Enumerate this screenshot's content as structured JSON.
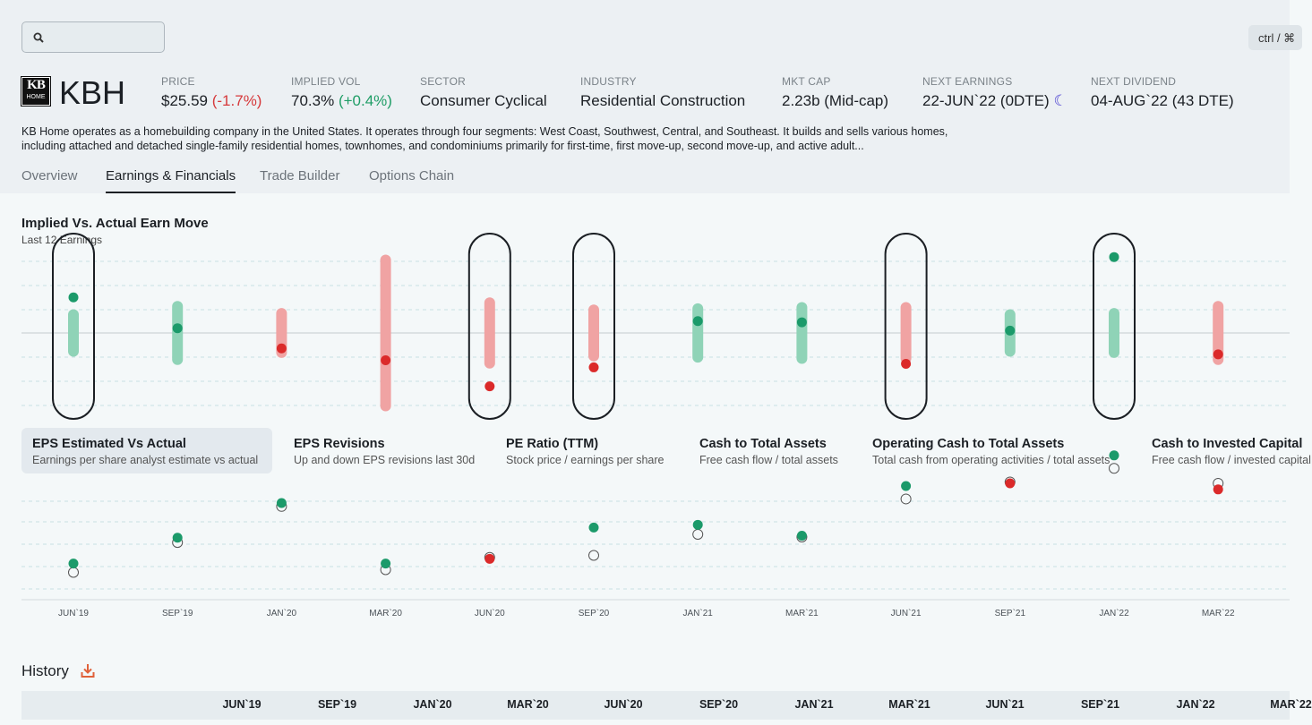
{
  "search": {
    "placeholder": "",
    "icon": "search-icon"
  },
  "shortcut": "ctrl / ⌘",
  "logo": {
    "line1": "KB",
    "line2": "HOME"
  },
  "ticker": "KBH",
  "stats": {
    "price": {
      "label": "PRICE",
      "value": "$25.59",
      "change": "(-1.7%)"
    },
    "iv": {
      "label": "IMPLIED VOL",
      "value": "70.3%",
      "change": "(+0.4%)"
    },
    "sector": {
      "label": "SECTOR",
      "value": "Consumer Cyclical"
    },
    "industry": {
      "label": "INDUSTRY",
      "value": "Residential Construction"
    },
    "mktcap": {
      "label": "MKT CAP",
      "value": "2.23b (Mid-cap)"
    },
    "earnings": {
      "label": "NEXT EARNINGS",
      "value": "22-JUN`22 (0DTE)",
      "icon": "☾"
    },
    "dividend": {
      "label": "NEXT DIVIDEND",
      "value": "04-AUG`22 (43 DTE)"
    }
  },
  "description": "KB Home operates as a homebuilding company in the United States. It operates through four segments: West Coast, Southwest, Central, and Southeast. It builds and sells various homes, including attached and detached single-family residential homes, townhomes, and condominiums primarily for first-time, first move-up, second move-up, and active adult...",
  "tabs": [
    "Overview",
    "Earnings & Financials",
    "Trade Builder",
    "Options Chain"
  ],
  "active_tab": "Earnings & Financials",
  "colors": {
    "green": "#1b9a6a",
    "red": "#db2a2a",
    "green_bar": "#8fd3b7",
    "red_bar": "#f0a3a3"
  },
  "chart_data": [
    {
      "type": "range-dot",
      "title": "Implied Vs. Actual Earn Move",
      "subtitle": "Last 12 Earnings",
      "categories": [
        "JUN`19",
        "SEP`19",
        "JAN`20",
        "MAR`20",
        "JUN`20",
        "SEP`20",
        "JAN`21",
        "MAR`21",
        "JUN`21",
        "SEP`21",
        "JAN`22",
        "MAR`22"
      ],
      "implied_range": [
        [
          -1.0,
          1.0
        ],
        [
          -1.35,
          1.35
        ],
        [
          -1.05,
          1.05
        ],
        [
          -3.3,
          3.3
        ],
        [
          -1.5,
          1.5
        ],
        [
          -1.2,
          1.2
        ],
        [
          -1.25,
          1.25
        ],
        [
          -1.3,
          1.3
        ],
        [
          -1.3,
          1.3
        ],
        [
          -1.0,
          1.0
        ],
        [
          -1.05,
          1.05
        ],
        [
          -1.35,
          1.35
        ]
      ],
      "actual_move": [
        1.5,
        0.2,
        -0.65,
        -1.15,
        -2.25,
        -1.45,
        0.5,
        0.45,
        -1.3,
        0.1,
        3.2,
        -0.9
      ],
      "beats_range": [
        true,
        false,
        false,
        false,
        true,
        true,
        false,
        false,
        true,
        false,
        true,
        false
      ]
    },
    {
      "type": "scatter",
      "title": "EPS Estimated Vs Actual",
      "categories": [
        "JUN`19",
        "SEP`19",
        "JAN`20",
        "MAR`20",
        "JUN`20",
        "SEP`20",
        "JAN`21",
        "MAR`21",
        "JUN`21",
        "SEP`21",
        "JAN`22",
        "MAR`22"
      ],
      "estimate": [
        0.48,
        0.92,
        1.45,
        0.52,
        0.7,
        0.73,
        1.04,
        1.0,
        1.56,
        1.81,
        2.01,
        1.79
      ],
      "actual": [
        0.61,
        0.99,
        1.5,
        0.61,
        0.68,
        1.14,
        1.18,
        1.02,
        1.75,
        1.79,
        2.2,
        1.7
      ]
    }
  ],
  "cards": [
    {
      "title": "EPS Estimated Vs Actual",
      "sub": "Earnings per share analyst estimate vs actual"
    },
    {
      "title": "EPS Revisions",
      "sub": "Up and down EPS revisions last 30d"
    },
    {
      "title": "PE Ratio (TTM)",
      "sub": "Stock price / earnings per share"
    },
    {
      "title": "Cash to Total Assets",
      "sub": "Free cash flow / total assets"
    },
    {
      "title": "Operating Cash to Total Assets",
      "sub": "Total cash from operating activities / total assets"
    },
    {
      "title": "Cash to Invested Capital",
      "sub": "Free cash flow / invested capital"
    }
  ],
  "history": {
    "title": "History",
    "icon": "download-icon",
    "columns": [
      "JUN`19",
      "SEP`19",
      "JAN`20",
      "MAR`20",
      "JUN`20",
      "SEP`20",
      "JAN`21",
      "MAR`21",
      "JUN`21",
      "SEP`21",
      "JAN`22",
      "MAR`22"
    ]
  }
}
